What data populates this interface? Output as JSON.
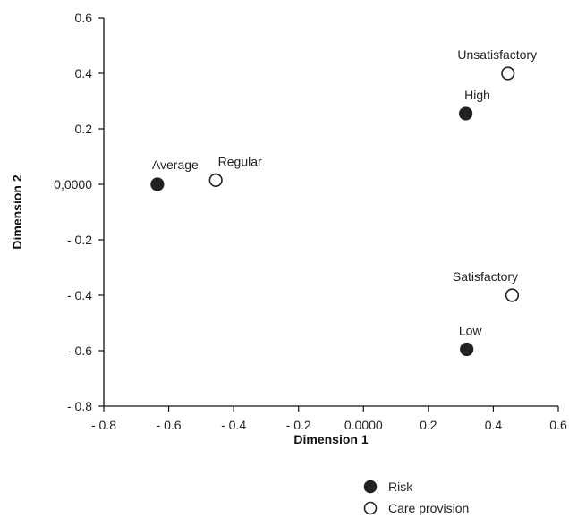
{
  "chart_data": {
    "type": "scatter",
    "title": "",
    "xlabel": "Dimension 1",
    "ylabel": "Dimension 2",
    "xlim": [
      -0.8,
      0.6
    ],
    "ylim": [
      -0.8,
      0.6
    ],
    "grid": false,
    "legend_position": "bottom-right",
    "x_ticks": [
      {
        "value": -0.8,
        "label": "- 0.8"
      },
      {
        "value": -0.6,
        "label": "- 0.6"
      },
      {
        "value": -0.4,
        "label": "- 0.4"
      },
      {
        "value": -0.2,
        "label": "- 0.2"
      },
      {
        "value": 0.0,
        "label": "0.0000"
      },
      {
        "value": 0.2,
        "label": "0.2"
      },
      {
        "value": 0.4,
        "label": "0.4"
      },
      {
        "value": 0.6,
        "label": "0.6"
      }
    ],
    "y_ticks": [
      {
        "value": 0.6,
        "label": "0.6"
      },
      {
        "value": 0.4,
        "label": "0.4"
      },
      {
        "value": 0.2,
        "label": "0.2"
      },
      {
        "value": 0.0,
        "label": "0,0000"
      },
      {
        "value": -0.2,
        "label": "- 0.2"
      },
      {
        "value": -0.4,
        "label": "- 0.4"
      },
      {
        "value": -0.6,
        "label": "- 0.6"
      },
      {
        "value": -0.8,
        "label": "- 0.8"
      }
    ],
    "series": [
      {
        "name": "Risk",
        "marker": "filled-circle",
        "color": "#222222",
        "points": [
          {
            "label": "Average",
            "x": -0.635,
            "y": 0.0
          },
          {
            "label": "High",
            "x": 0.315,
            "y": 0.255
          },
          {
            "label": "Low",
            "x": 0.318,
            "y": -0.595
          }
        ]
      },
      {
        "name": "Care provision",
        "marker": "open-circle",
        "color": "#222222",
        "points": [
          {
            "label": "Regular",
            "x": -0.455,
            "y": 0.015
          },
          {
            "label": "Unsatisfactory",
            "x": 0.445,
            "y": 0.4
          },
          {
            "label": "Satisfactory",
            "x": 0.458,
            "y": -0.4
          }
        ]
      }
    ]
  }
}
